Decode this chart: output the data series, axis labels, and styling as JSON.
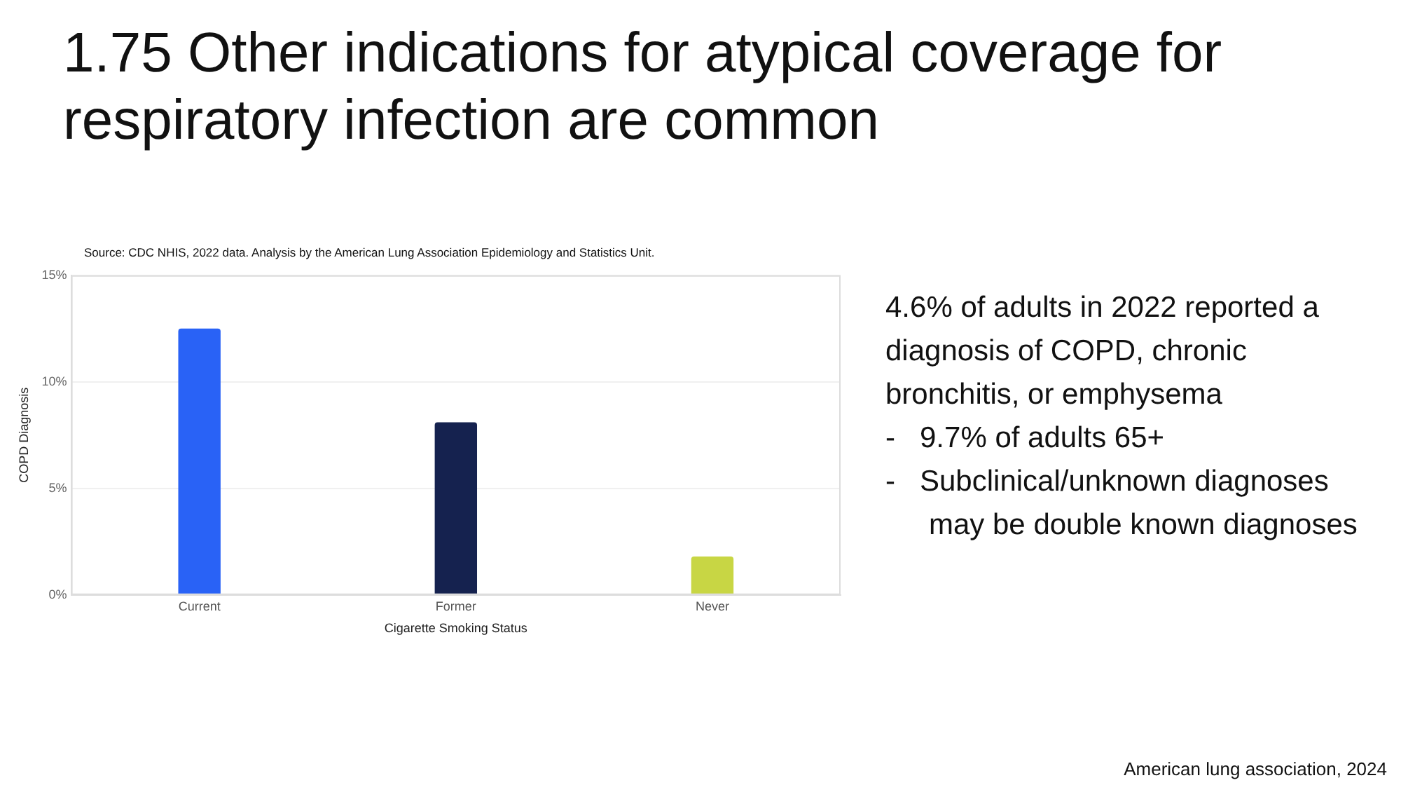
{
  "chart_data": {
    "type": "bar",
    "title": "1.75 Other indications for atypical coverage for respiratory infection are common",
    "subtitle": "Source: CDC NHIS, 2022 data. Analysis by the American Lung Association Epidemiology and Statistics Unit.",
    "xlabel": "Cigarette Smoking Status",
    "ylabel": "COPD Diagnosis",
    "categories": [
      "Current",
      "Former",
      "Never"
    ],
    "values": [
      12.5,
      8.1,
      1.8
    ],
    "colors": [
      "#2962f6",
      "#15224f",
      "#c8d644"
    ],
    "ylim": [
      0,
      15
    ],
    "yticks": [
      {
        "value": 0,
        "label": "0%"
      },
      {
        "value": 5,
        "label": "5%"
      },
      {
        "value": 10,
        "label": "10%"
      },
      {
        "value": 15,
        "label": "15%"
      }
    ],
    "grid": "y",
    "annotations": [
      "4.6% of adults in 2022 reported a diagnosis of COPD, chronic bronchitis, or emphysema",
      "-   9.7% of adults 65+",
      "-   Subclinical/unknown diagnoses may be double known diagnoses",
      "American lung association, 2024"
    ]
  }
}
